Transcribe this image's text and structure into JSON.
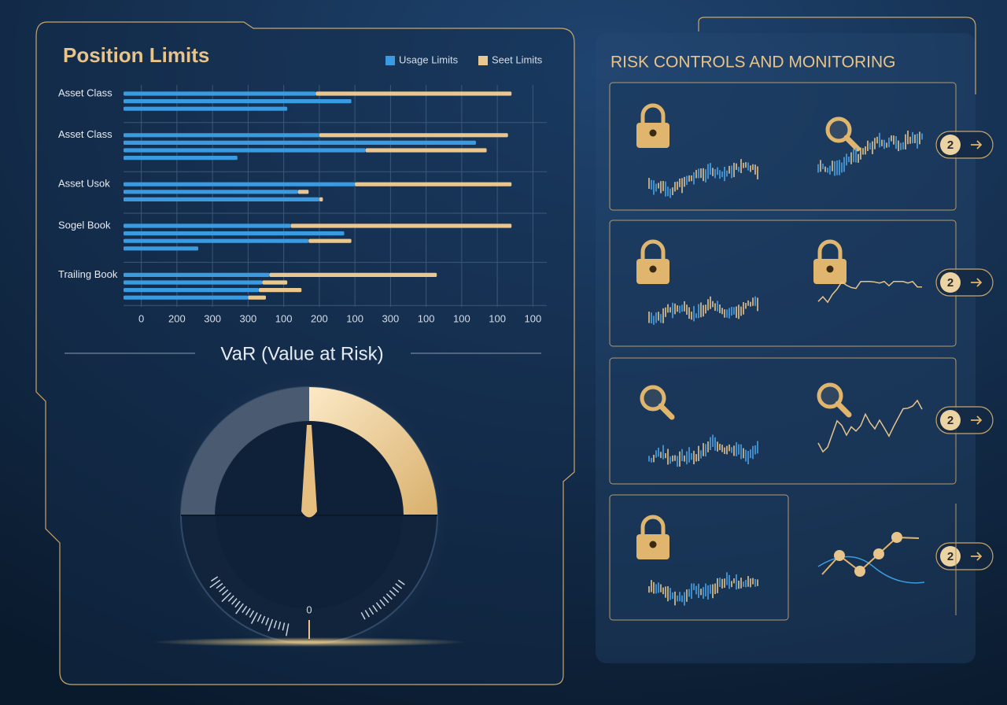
{
  "chart_data": [
    {
      "type": "bar",
      "orientation": "horizontal",
      "stacked": true,
      "title": "Position Limits",
      "categories": [
        "Asset Class",
        null,
        null,
        "Asset Class",
        null,
        null,
        null,
        "Asset Usok",
        null,
        null,
        "Sogel Book",
        null,
        null,
        null,
        "Trailing Book",
        null,
        null,
        null
      ],
      "series": [
        {
          "name": "Usage Limits",
          "color": "#3b9be0",
          "values": [
            5.4,
            6.4,
            4.6,
            5.5,
            9.9,
            6.8,
            3.2,
            6.5,
            4.9,
            5.5,
            4.7,
            6.2,
            5.2,
            2.1,
            4.1,
            3.9,
            3.8,
            3.5
          ]
        },
        {
          "name": "Seet Limits",
          "color": "#e9c78f",
          "values": [
            5.5,
            null,
            null,
            5.3,
            null,
            3.4,
            null,
            4.4,
            0.3,
            0.1,
            6.2,
            null,
            1.2,
            null,
            4.7,
            0.7,
            1.2,
            0.5
          ]
        }
      ],
      "xlim": [
        0,
        12
      ],
      "xticks": [
        {
          "value": 0.5,
          "label": "0"
        },
        {
          "value": 1.5,
          "label": "200"
        },
        {
          "value": 2.5,
          "label": "300"
        },
        {
          "value": 3.5,
          "label": "300"
        },
        {
          "value": 4.5,
          "label": "100"
        },
        {
          "value": 5.5,
          "label": "200"
        },
        {
          "value": 6.5,
          "label": "100"
        },
        {
          "value": 7.5,
          "label": "300"
        },
        {
          "value": 8.5,
          "label": "100"
        },
        {
          "value": 9.5,
          "label": "100"
        },
        {
          "value": 10.5,
          "label": "100"
        },
        {
          "value": 11.5,
          "label": "100"
        }
      ],
      "grid": true,
      "legend": "top-right"
    }
  ],
  "var_gauge": {
    "title": "VaR (Value at Risk)",
    "scale_label": "0"
  },
  "risk_panel": {
    "title": "RISK CONTROLS AND MONITORING",
    "cards": [
      {
        "badge": "2"
      },
      {
        "badge": "2"
      },
      {
        "badge": "2"
      },
      {
        "badge": "2"
      }
    ]
  }
}
